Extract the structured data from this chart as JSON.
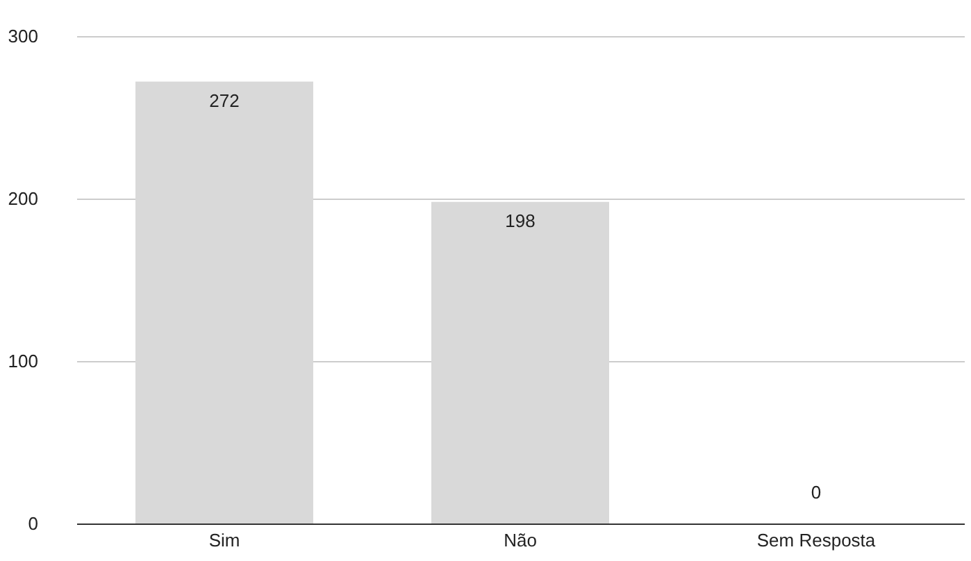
{
  "chart_data": {
    "type": "bar",
    "categories": [
      "Sim",
      "Não",
      "Sem Resposta"
    ],
    "values": [
      272,
      198,
      0
    ],
    "color": "#d9d9d9",
    "ylim": [
      0,
      300
    ],
    "yticks": [
      0,
      100,
      200,
      300
    ],
    "grid": "y",
    "data_labels": true
  }
}
